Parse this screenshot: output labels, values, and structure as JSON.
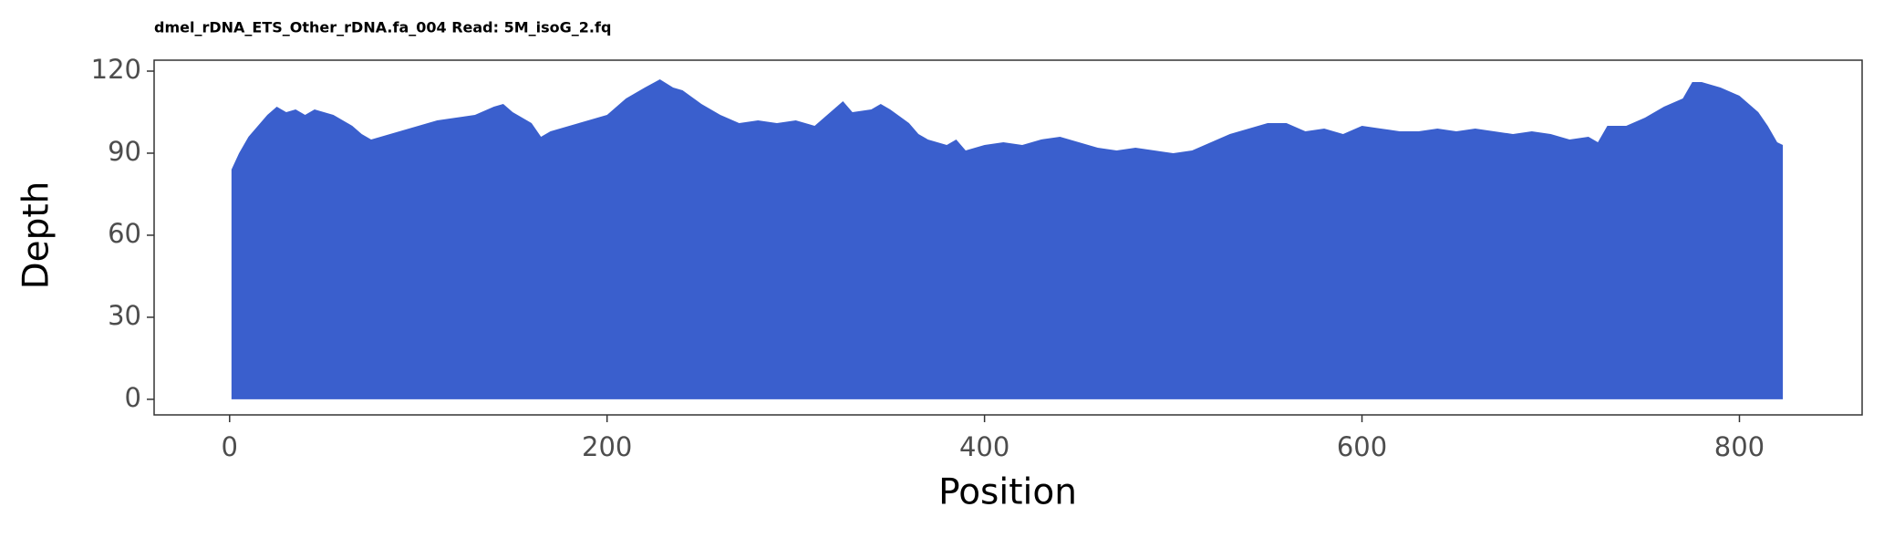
{
  "chart_data": {
    "type": "area",
    "title": "dmel_rDNA_ETS_Other_rDNA.fa_004 Read: 5M_isoG_2.fq",
    "x_label": "Position",
    "y_label": "Depth",
    "color": "#3a5fcd",
    "x": [
      1,
      5,
      10,
      15,
      20,
      25,
      30,
      35,
      40,
      45,
      50,
      55,
      60,
      65,
      70,
      75,
      80,
      85,
      90,
      95,
      100,
      110,
      120,
      130,
      140,
      145,
      150,
      160,
      165,
      170,
      180,
      190,
      200,
      210,
      220,
      228,
      235,
      240,
      250,
      260,
      270,
      280,
      290,
      300,
      310,
      320,
      325,
      330,
      340,
      345,
      350,
      360,
      365,
      370,
      380,
      385,
      390,
      400,
      410,
      420,
      430,
      440,
      450,
      460,
      470,
      480,
      490,
      500,
      510,
      520,
      530,
      540,
      550,
      560,
      570,
      580,
      590,
      600,
      610,
      620,
      630,
      640,
      650,
      660,
      670,
      680,
      690,
      700,
      710,
      720,
      725,
      730,
      740,
      750,
      760,
      770,
      775,
      780,
      790,
      800,
      810,
      815,
      820,
      823
    ],
    "values": [
      84,
      90,
      96,
      100,
      104,
      107,
      105,
      106,
      104,
      106,
      105,
      104,
      102,
      100,
      97,
      95,
      96,
      97,
      98,
      99,
      100,
      102,
      103,
      104,
      107,
      108,
      105,
      101,
      96,
      98,
      100,
      102,
      104,
      110,
      114,
      117,
      114,
      113,
      108,
      104,
      101,
      102,
      101,
      102,
      100,
      106,
      109,
      105,
      106,
      108,
      106,
      101,
      97,
      95,
      93,
      95,
      91,
      93,
      94,
      93,
      95,
      96,
      94,
      92,
      91,
      92,
      91,
      90,
      91,
      94,
      97,
      99,
      101,
      101,
      98,
      99,
      97,
      100,
      99,
      98,
      98,
      99,
      98,
      99,
      98,
      97,
      98,
      97,
      95,
      96,
      94,
      100,
      100,
      103,
      107,
      110,
      116,
      116,
      114,
      111,
      105,
      100,
      94,
      93
    ],
    "xlim": [
      -40,
      865
    ],
    "ylim": [
      -5.7,
      124
    ],
    "xticks": [
      0,
      200,
      400,
      600,
      800
    ],
    "yticks": [
      0,
      30,
      60,
      90,
      120
    ]
  }
}
